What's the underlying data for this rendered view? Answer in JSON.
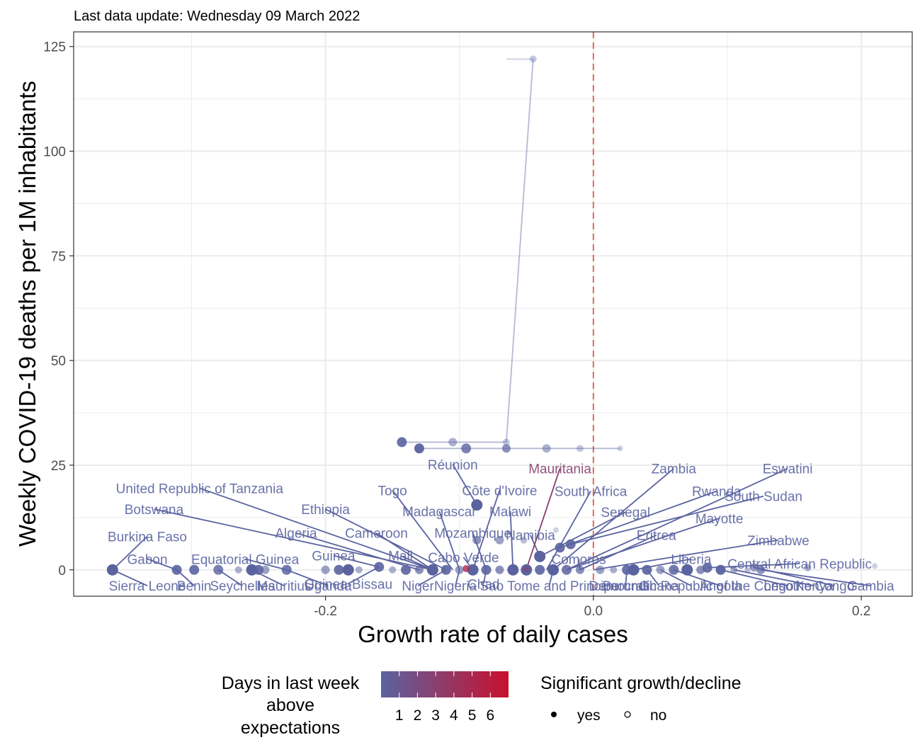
{
  "subtitle": "Last data update: Wednesday 09 March 2022",
  "colors": {
    "low": "#5a63a0",
    "high": "#c8102e",
    "reference_line": "#e06b5b",
    "grid": "#ebebeb",
    "panel_border": "#333333"
  },
  "chart_data": {
    "type": "scatter",
    "xlabel": "Growth rate of daily cases",
    "ylabel": "Weekly COVID-19 deaths per 1M inhabitants",
    "xlim": [
      -0.388,
      0.238
    ],
    "ylim": [
      -6.3,
      128.5
    ],
    "x_ticks": [
      -0.2,
      0.0,
      0.2
    ],
    "x_tick_labels": [
      "-0.2",
      "0.0",
      "0.2"
    ],
    "y_ticks": [
      0,
      25,
      50,
      75,
      100,
      125
    ],
    "y_tick_labels": [
      "0",
      "25",
      "50",
      "75",
      "100",
      "125"
    ],
    "reference_line_x": 0.0,
    "grid": true,
    "legend_position": "bottom",
    "color_legend": {
      "title": "Days in last week above expectations",
      "title_lines": [
        "Days in last week",
        "above",
        "expectations"
      ],
      "values": [
        1,
        2,
        3,
        4,
        5,
        6
      ],
      "labels": [
        "1",
        "2",
        "3",
        "4",
        "5",
        "6"
      ]
    },
    "shape_legend": {
      "title": "Significant growth/decline",
      "entries": [
        {
          "label": "yes",
          "filled": true
        },
        {
          "label": "no",
          "filled": false
        }
      ]
    },
    "trails": [
      {
        "points": [
          [
            -0.065,
            122
          ],
          [
            -0.045,
            122
          ]
        ],
        "opacity": 0.3
      },
      {
        "points": [
          [
            -0.045,
            122
          ],
          [
            -0.065,
            30.5
          ],
          [
            -0.105,
            30.5
          ],
          [
            -0.143,
            30.5
          ]
        ],
        "opacity": 0.45
      },
      {
        "points": [
          [
            0.02,
            29
          ],
          [
            -0.01,
            29
          ],
          [
            -0.035,
            29
          ],
          [
            -0.065,
            29
          ],
          [
            -0.095,
            29
          ],
          [
            -0.13,
            29
          ]
        ],
        "opacity": 0.45
      }
    ],
    "points": [
      {
        "x": -0.045,
        "y": 122,
        "r": 5,
        "opacity": 0.35
      },
      {
        "x": -0.065,
        "y": 30.5,
        "r": 5,
        "opacity": 0.35
      },
      {
        "x": -0.105,
        "y": 30.5,
        "r": 6,
        "opacity": 0.5
      },
      {
        "x": -0.143,
        "y": 30.5,
        "r": 7,
        "opacity": 0.9
      },
      {
        "x": 0.02,
        "y": 29,
        "r": 4,
        "opacity": 0.3
      },
      {
        "x": -0.01,
        "y": 29,
        "r": 5,
        "opacity": 0.35
      },
      {
        "x": -0.035,
        "y": 29,
        "r": 6,
        "opacity": 0.5
      },
      {
        "x": -0.065,
        "y": 29,
        "r": 6,
        "opacity": 0.7
      },
      {
        "x": -0.095,
        "y": 29,
        "r": 7,
        "opacity": 0.8
      },
      {
        "x": -0.13,
        "y": 29,
        "r": 7,
        "opacity": 0.95
      },
      {
        "x": -0.087,
        "y": 15.5,
        "r": 8,
        "opacity": 1
      },
      {
        "x": -0.04,
        "y": 3.2,
        "r": 8,
        "opacity": 1
      },
      {
        "x": -0.025,
        "y": 5.3,
        "r": 7,
        "opacity": 0.9
      },
      {
        "x": -0.017,
        "y": 6.1,
        "r": 7,
        "opacity": 0.9
      },
      {
        "x": -0.087,
        "y": 7.1,
        "r": 6,
        "opacity": 0.7
      },
      {
        "x": -0.07,
        "y": 7.1,
        "r": 6,
        "opacity": 0.6
      },
      {
        "x": -0.052,
        "y": 7.1,
        "r": 5,
        "opacity": 0.4
      },
      {
        "x": -0.028,
        "y": 9.5,
        "r": 4,
        "opacity": 0.3
      },
      {
        "x": -0.359,
        "y": 0,
        "r": 8,
        "opacity": 1
      },
      {
        "x": -0.311,
        "y": 0,
        "r": 7,
        "opacity": 0.9
      },
      {
        "x": -0.298,
        "y": 0,
        "r": 7,
        "opacity": 0.9
      },
      {
        "x": -0.28,
        "y": 0,
        "r": 7,
        "opacity": 0.8
      },
      {
        "x": -0.265,
        "y": 0,
        "r": 5,
        "opacity": 0.5
      },
      {
        "x": -0.255,
        "y": 0,
        "r": 8,
        "opacity": 1
      },
      {
        "x": -0.25,
        "y": 0,
        "r": 7,
        "opacity": 0.9
      },
      {
        "x": -0.245,
        "y": 0,
        "r": 6,
        "opacity": 0.6
      },
      {
        "x": -0.229,
        "y": 0,
        "r": 7,
        "opacity": 0.85
      },
      {
        "x": -0.2,
        "y": 0,
        "r": 6,
        "opacity": 0.6
      },
      {
        "x": -0.19,
        "y": 0,
        "r": 7,
        "opacity": 0.9
      },
      {
        "x": -0.183,
        "y": 0,
        "r": 8,
        "opacity": 1
      },
      {
        "x": -0.175,
        "y": 0,
        "r": 5,
        "opacity": 0.5
      },
      {
        "x": -0.16,
        "y": 0.7,
        "r": 7,
        "opacity": 0.9
      },
      {
        "x": -0.15,
        "y": 0,
        "r": 5,
        "opacity": 0.5
      },
      {
        "x": -0.14,
        "y": 0,
        "r": 7,
        "opacity": 0.9
      },
      {
        "x": -0.13,
        "y": 0,
        "r": 6,
        "opacity": 0.7
      },
      {
        "x": -0.12,
        "y": 0,
        "r": 8,
        "opacity": 1
      },
      {
        "x": -0.11,
        "y": 0,
        "r": 7,
        "opacity": 0.9
      },
      {
        "x": -0.1,
        "y": 0,
        "r": 6,
        "opacity": 0.6
      },
      {
        "x": -0.09,
        "y": 0,
        "r": 8,
        "opacity": 1
      },
      {
        "x": -0.08,
        "y": 0,
        "r": 7,
        "opacity": 0.9
      },
      {
        "x": -0.07,
        "y": 0,
        "r": 6,
        "opacity": 0.7
      },
      {
        "x": -0.06,
        "y": 0,
        "r": 8,
        "opacity": 1
      },
      {
        "x": -0.05,
        "y": 0,
        "r": 8,
        "opacity": 1
      },
      {
        "x": -0.04,
        "y": 0,
        "r": 7,
        "opacity": 0.9
      },
      {
        "x": -0.03,
        "y": 0,
        "r": 8,
        "opacity": 1
      },
      {
        "x": -0.02,
        "y": 0,
        "r": 7,
        "opacity": 0.85
      },
      {
        "x": -0.01,
        "y": 0,
        "r": 6,
        "opacity": 0.7
      },
      {
        "x": 0.005,
        "y": 0,
        "r": 6,
        "opacity": 0.6
      },
      {
        "x": 0.015,
        "y": 0,
        "r": 5,
        "opacity": 0.5
      },
      {
        "x": 0.025,
        "y": 0,
        "r": 7,
        "opacity": 0.9
      },
      {
        "x": 0.03,
        "y": 0,
        "r": 8,
        "opacity": 1
      },
      {
        "x": 0.04,
        "y": 0,
        "r": 7,
        "opacity": 0.9
      },
      {
        "x": 0.05,
        "y": 0,
        "r": 6,
        "opacity": 0.6
      },
      {
        "x": 0.06,
        "y": 0,
        "r": 7,
        "opacity": 0.85
      },
      {
        "x": 0.07,
        "y": 0,
        "r": 8,
        "opacity": 1
      },
      {
        "x": 0.08,
        "y": 0,
        "r": 6,
        "opacity": 0.7
      },
      {
        "x": 0.085,
        "y": 0.5,
        "r": 7,
        "opacity": 0.9
      },
      {
        "x": 0.095,
        "y": 0,
        "r": 7,
        "opacity": 0.95
      },
      {
        "x": 0.105,
        "y": 0,
        "r": 5,
        "opacity": 0.5
      },
      {
        "x": 0.115,
        "y": 0,
        "r": 4,
        "opacity": 0.4
      },
      {
        "x": 0.12,
        "y": 0.6,
        "r": 6,
        "opacity": 0.6
      },
      {
        "x": 0.125,
        "y": 0,
        "r": 6,
        "opacity": 0.7
      },
      {
        "x": 0.16,
        "y": 0.5,
        "r": 5,
        "opacity": 0.5
      },
      {
        "x": 0.21,
        "y": 0.9,
        "r": 4,
        "opacity": 0.3
      },
      {
        "x": -0.095,
        "y": 0.3,
        "r": 5,
        "opacity": 0.8,
        "days": 5
      },
      {
        "x": -0.05,
        "y": 0.2,
        "r": 4,
        "opacity": 0.6,
        "days": 3
      }
    ],
    "annotations": [
      {
        "label": "Burkina Faso",
        "tx": -0.333,
        "ty": 8.0,
        "px": -0.359,
        "py": 0
      },
      {
        "label": "Gabon",
        "tx": -0.333,
        "ty": 2.6,
        "px": -0.311,
        "py": 0
      },
      {
        "label": "Sierra Leone",
        "tx": -0.333,
        "ty": -3.8,
        "px": -0.359,
        "py": 0
      },
      {
        "label": "Benin",
        "tx": -0.298,
        "ty": -3.8,
        "px": -0.311,
        "py": 0
      },
      {
        "label": "Seychelles",
        "tx": -0.262,
        "ty": -3.8,
        "px": -0.28,
        "py": 0
      },
      {
        "label": "Equatorial Guinea",
        "tx": -0.26,
        "ty": 2.6,
        "px": -0.229,
        "py": 0
      },
      {
        "label": "Mauritius",
        "tx": -0.231,
        "ty": -3.8,
        "px": -0.255,
        "py": 0
      },
      {
        "label": "Uganda",
        "tx": -0.198,
        "ty": -3.8,
        "px": -0.229,
        "py": 0
      },
      {
        "label": "United Republic of Tanzania",
        "tx": -0.294,
        "ty": 19.5,
        "px": -0.12,
        "py": 0
      },
      {
        "label": "Botswana",
        "tx": -0.328,
        "ty": 14.5,
        "px": -0.12,
        "py": 0
      },
      {
        "label": "Ethiopia",
        "tx": -0.2,
        "ty": 14.5,
        "px": -0.11,
        "py": 0
      },
      {
        "label": "Algeria",
        "tx": -0.222,
        "ty": 8.8,
        "px": -0.13,
        "py": 0
      },
      {
        "label": "Cameroon",
        "tx": -0.162,
        "ty": 8.8,
        "px": -0.12,
        "py": 0
      },
      {
        "label": "Guinea",
        "tx": -0.194,
        "ty": 3.4,
        "px": -0.16,
        "py": 0.7
      },
      {
        "label": "Guinea-Bissau",
        "tx": -0.183,
        "ty": -3.3,
        "px": -0.16,
        "py": 0.7
      },
      {
        "label": "Mali",
        "tx": -0.144,
        "ty": 3.4,
        "px": -0.12,
        "py": 0
      },
      {
        "label": "Niger",
        "tx": -0.131,
        "ty": -3.8,
        "px": -0.11,
        "py": 0
      },
      {
        "label": "Nigeria",
        "tx": -0.103,
        "ty": -3.8,
        "px": -0.1,
        "py": 0
      },
      {
        "label": "Togo",
        "tx": -0.15,
        "ty": 19.0,
        "px": -0.105,
        "py": 0
      },
      {
        "label": "Madagascar",
        "tx": -0.115,
        "ty": 14.0,
        "px": -0.1,
        "py": 0
      },
      {
        "label": "Côte d'Ivoire",
        "tx": -0.07,
        "ty": 19.0,
        "px": -0.09,
        "py": 0
      },
      {
        "label": "Réunion",
        "tx": -0.105,
        "ty": 25.2,
        "px": -0.087,
        "py": 15.5
      },
      {
        "label": "Mozambique",
        "tx": -0.09,
        "ty": 8.8,
        "px": -0.08,
        "py": 0
      },
      {
        "label": "Cabo Verde",
        "tx": -0.097,
        "ty": 3.0,
        "px": -0.09,
        "py": 0
      },
      {
        "label": "Chad",
        "tx": -0.082,
        "ty": -3.3,
        "px": -0.08,
        "py": 0
      },
      {
        "label": "Malawi",
        "tx": -0.062,
        "ty": 14.0,
        "px": -0.06,
        "py": 0
      },
      {
        "label": "Namibia",
        "tx": -0.047,
        "ty": 8.3,
        "px": -0.04,
        "py": 3.2
      },
      {
        "label": "Sao Tome and Principe",
        "tx": -0.033,
        "ty": -3.8,
        "px": -0.03,
        "py": 0
      },
      {
        "label": "Mauritania",
        "tx": -0.025,
        "ty": 24.2,
        "px": -0.05,
        "py": 0.2,
        "days": 3
      },
      {
        "label": "Zambia",
        "tx": 0.06,
        "ty": 24.2,
        "px": -0.03,
        "py": 0
      },
      {
        "label": "Eswatini",
        "tx": 0.145,
        "ty": 24.2,
        "px": -0.02,
        "py": 0
      },
      {
        "label": "South Africa",
        "tx": -0.002,
        "ty": 18.8,
        "px": -0.035,
        "py": 0
      },
      {
        "label": "Rwanda",
        "tx": 0.092,
        "ty": 18.8,
        "px": -0.025,
        "py": 5.3
      },
      {
        "label": "South Sudan",
        "tx": 0.127,
        "ty": 17.6,
        "px": -0.017,
        "py": 6.1
      },
      {
        "label": "Senegal",
        "tx": 0.024,
        "ty": 13.8,
        "px": -0.04,
        "py": 3.2
      },
      {
        "label": "Mayotte",
        "tx": 0.094,
        "ty": 12.3,
        "px": -0.02,
        "py": 0
      },
      {
        "label": "Eritrea",
        "tx": 0.047,
        "ty": 8.3,
        "px": -0.01,
        "py": 0
      },
      {
        "label": "Zimbabwe",
        "tx": 0.138,
        "ty": 7.1,
        "px": 0.0,
        "py": 0
      },
      {
        "label": "Comoros",
        "tx": -0.011,
        "ty": 2.6,
        "px": -0.01,
        "py": 0
      },
      {
        "label": "Liberia",
        "tx": 0.073,
        "ty": 2.6,
        "px": 0.03,
        "py": 0
      },
      {
        "label": "Central African Republic",
        "tx": 0.154,
        "ty": 1.5,
        "px": 0.085,
        "py": 0.5
      },
      {
        "label": "Burundi",
        "tx": 0.024,
        "ty": -3.8,
        "px": 0.025,
        "py": 0
      },
      {
        "label": "Ghana",
        "tx": 0.049,
        "ty": -3.8,
        "px": 0.04,
        "py": 0
      },
      {
        "label": "Democratic Republic of the Congo",
        "tx": 0.073,
        "ty": -3.8,
        "px": 0.05,
        "py": 0
      },
      {
        "label": "Angola",
        "tx": 0.095,
        "ty": -3.8,
        "px": 0.06,
        "py": 0
      },
      {
        "label": "Lesotho",
        "tx": 0.145,
        "ty": -3.8,
        "px": 0.095,
        "py": 0
      },
      {
        "label": "Kenya",
        "tx": 0.165,
        "ty": -3.8,
        "px": 0.105,
        "py": 0
      },
      {
        "label": "Congo",
        "tx": 0.18,
        "ty": -3.8,
        "px": 0.12,
        "py": 0.6
      },
      {
        "label": "Gambia",
        "tx": 0.207,
        "ty": -3.8,
        "px": 0.125,
        "py": 0
      }
    ]
  }
}
